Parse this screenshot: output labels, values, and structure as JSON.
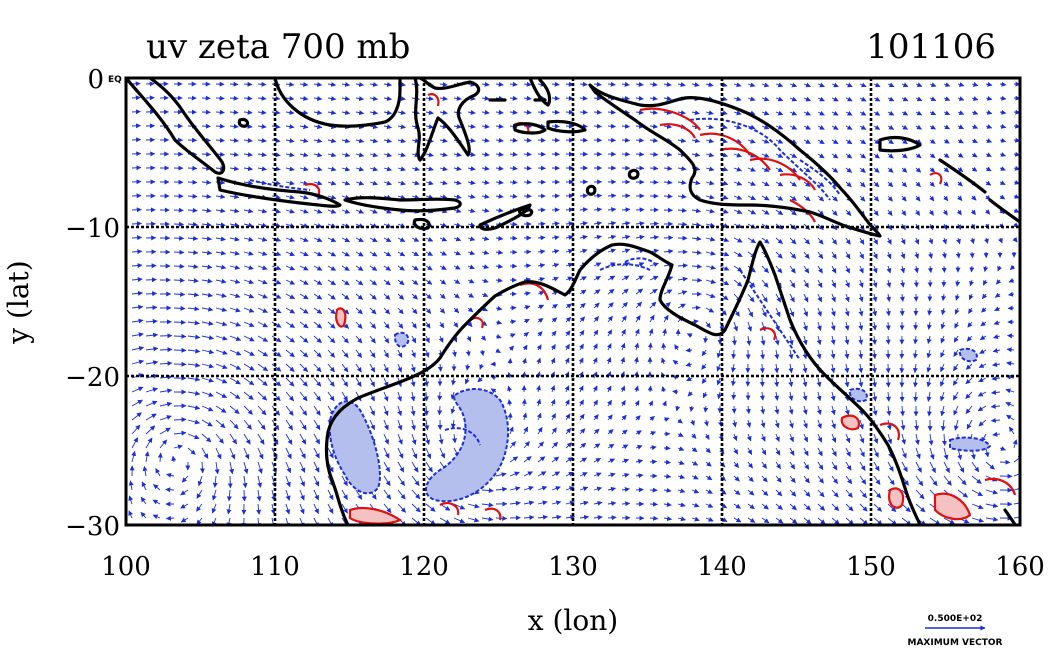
{
  "title": {
    "left": "uv zeta 700 mb",
    "right": "101106"
  },
  "axes": {
    "xlabel": "x (lon)",
    "ylabel": "y (lat)",
    "x_ticks": [
      "100",
      "110",
      "120",
      "130",
      "140",
      "150",
      "160"
    ],
    "y_ticks": [
      "0",
      "−10",
      "−20",
      "−30"
    ],
    "y_top_suffix": "EQ",
    "xlim": [
      100,
      160
    ],
    "ylim": [
      -30,
      0
    ]
  },
  "reference_vector": {
    "value": "0.500E+02",
    "label": "MAXIMUM VECTOR"
  },
  "colors": {
    "vector": "#1a2fd6",
    "positive_contour": "#e01010",
    "negative_contour": "#1a2fd6",
    "negative_fill": "#b4bfee",
    "positive_fill": "#f4c2c2",
    "coastline": "#000000"
  },
  "chart_data": {
    "type": "vector-map",
    "fields": [
      "u,v wind vectors",
      "relative vorticity (zeta)"
    ],
    "level": "700 mb",
    "region": {
      "lon": [
        100,
        160
      ],
      "lat": [
        -30,
        0
      ]
    },
    "grid": true
  }
}
